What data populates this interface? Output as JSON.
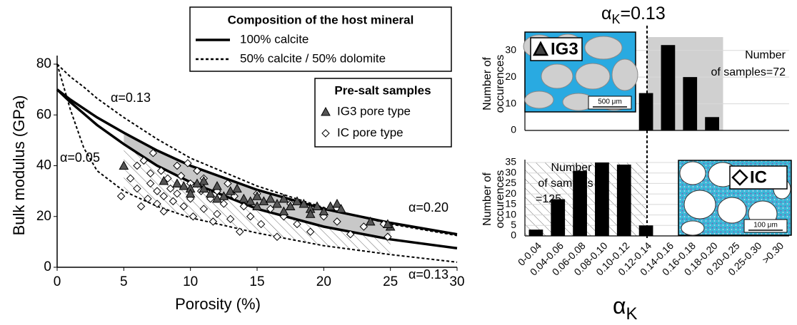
{
  "chart_data": [
    {
      "type": "scatter",
      "xlabel": "Porosity (%)",
      "ylabel": "Bulk modulus (GPa)",
      "xlim": [
        0,
        30
      ],
      "ylim": [
        0,
        80
      ],
      "xticks": [
        0,
        5,
        10,
        15,
        20,
        25,
        30
      ],
      "yticks": [
        0,
        20,
        40,
        60,
        80
      ],
      "curve_legend_title": "Composition of the host mineral",
      "curve_x": [
        0,
        1,
        2,
        3,
        5,
        7.5,
        10,
        15,
        20,
        25,
        30
      ],
      "curves": [
        {
          "name": "100% calcite",
          "dash": false,
          "color": "#000000",
          "lines": [
            [
              70,
              66,
              62.5,
              59,
              53,
              46,
              40,
              30.5,
              23,
              17.5,
              13
            ],
            [
              70,
              65,
              60.5,
              56,
              48.5,
              40,
              33.5,
              23,
              16,
              11,
              7.5
            ]
          ]
        },
        {
          "name": "50% calcite / 50% dolomite",
          "dash": true,
          "color": "#000000",
          "lines": [
            [
              80,
              75,
              71,
              66.5,
              59,
              50.5,
              43,
              32,
              23.5,
              17,
              12.5
            ],
            [
              80,
              62,
              47,
              38,
              30,
              24,
              19.5,
              13.5,
              8.5,
              5,
              2
            ]
          ]
        }
      ],
      "legend_title": "Pre-salt samples",
      "series": [
        {
          "name": "IG3 pore type",
          "marker": "triangle",
          "color": "#555555",
          "x": [
            5,
            8,
            9,
            9.5,
            10,
            10.5,
            11,
            11.5,
            12,
            12.5,
            13,
            13.5,
            14,
            14.5,
            15,
            15.5,
            16,
            16.5,
            17,
            17.5,
            18,
            18.5,
            19,
            19.5,
            20,
            20.5,
            21,
            21.3,
            23.5,
            25,
            24.8,
            15,
            17,
            19,
            12,
            10,
            11
          ],
          "values": [
            40,
            34,
            33,
            32,
            31,
            33,
            31,
            29,
            32,
            28,
            30,
            31,
            27,
            26,
            28,
            26,
            27,
            25,
            27,
            24,
            26,
            25,
            23,
            24,
            22,
            24,
            25,
            23,
            18,
            16,
            17,
            24,
            22,
            21,
            27,
            29,
            34
          ]
        },
        {
          "name": "IC pore type",
          "marker": "diamond",
          "color": "#ffffff",
          "x": [
            4.8,
            5.5,
            6,
            6,
            6.3,
            6.5,
            6.8,
            7,
            7,
            7.2,
            7.5,
            7.5,
            7.8,
            8,
            8,
            8.3,
            8.5,
            8.7,
            9,
            9,
            9.3,
            9.5,
            9.8,
            10,
            10,
            10.2,
            10.5,
            10.8,
            11,
            11,
            11.5,
            11.7,
            12,
            12,
            12.5,
            12.8,
            13,
            13.3,
            13.7,
            14,
            14.5,
            15,
            15.3,
            16,
            16.5,
            17,
            17.5,
            18,
            19,
            20,
            21,
            22,
            23,
            24.5,
            24.8
          ],
          "values": [
            28,
            35,
            40,
            31,
            24,
            42,
            27,
            37,
            33,
            45,
            30,
            25,
            38,
            28,
            22,
            35,
            31,
            26,
            40,
            29,
            36,
            24,
            41,
            33,
            27,
            20,
            38,
            30,
            23,
            35,
            27,
            18,
            30,
            21,
            25,
            33,
            19,
            28,
            14,
            24,
            20,
            29,
            17,
            23,
            12,
            20,
            25,
            17,
            14,
            20,
            18,
            13,
            16,
            17,
            12
          ]
        }
      ],
      "annotations": [
        "α=0.13",
        "α=0.05",
        "α=0.20",
        "α=0.13"
      ]
    },
    {
      "type": "bar",
      "xlabel": "α",
      "xlabel_sub": "K",
      "marker_label": [
        "α",
        "K",
        "=0.13"
      ],
      "ylabel": [
        "Number of",
        "occurences"
      ],
      "categories": [
        "0-0.04",
        "0.04-0.06",
        "0.06-0.08",
        "0.08-0.10",
        "0.10-0.12",
        "0.12-0.14",
        "0.14-0.16",
        "0.16-0.18",
        "0.18-0.20",
        "0.20-0.25",
        "0.25-0.30",
        ">0.30"
      ],
      "color": "#000000",
      "grid": true,
      "panels": [
        {
          "name": "IG3",
          "values": [
            0,
            0,
            0,
            0,
            0,
            14,
            32,
            20,
            5,
            0,
            0,
            0
          ],
          "ylim": [
            0,
            35
          ],
          "yticks": [
            0,
            10,
            20,
            30
          ],
          "annotation": [
            "Number",
            "of samples=72"
          ],
          "scale_bar": "500 μm"
        },
        {
          "name": "IC",
          "values": [
            3,
            17.5,
            31,
            35,
            34,
            5,
            0,
            0,
            0,
            0,
            0,
            0
          ],
          "ylim": [
            0,
            35
          ],
          "yticks": [
            0,
            5,
            10,
            15,
            20,
            25,
            30,
            35
          ],
          "annotation": [
            "Number",
            "of samples",
            "=125"
          ],
          "scale_bar": "100 μm"
        }
      ]
    }
  ]
}
